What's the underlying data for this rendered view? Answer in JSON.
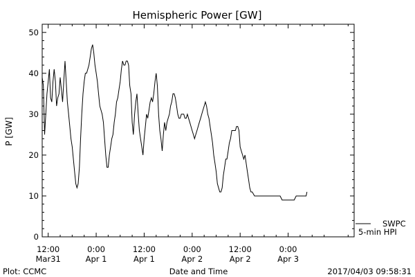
{
  "chart_data": {
    "type": "line",
    "title": "Hemispheric Power [GW]",
    "ylabel": "P [GW]",
    "xlabel": "Date and Time",
    "ylim": [
      0,
      52
    ],
    "yticks": [
      0,
      10,
      20,
      30,
      40,
      50
    ],
    "x_unit": "hours since Mar31 12:00",
    "xlim": [
      -1.5,
      76.5
    ],
    "xticks": [
      {
        "x": 0,
        "line1": "12:00",
        "line2": "Mar31"
      },
      {
        "x": 12,
        "line1": "0:00",
        "line2": "Apr 1"
      },
      {
        "x": 24,
        "line1": "12:00",
        "line2": "Apr 1"
      },
      {
        "x": 36,
        "line1": "0:00",
        "line2": "Apr 2"
      },
      {
        "x": 48,
        "line1": "12:00",
        "line2": "Apr 2"
      },
      {
        "x": 60,
        "line1": "0:00",
        "line2": "Apr 3"
      }
    ],
    "grid": false,
    "legend": {
      "placement": "right-bottom",
      "entries": [
        "SWPC",
        "5-min HPI"
      ]
    },
    "series": [
      {
        "name": "SWPC",
        "points": [
          [
            -1.5,
            39
          ],
          [
            -1.2,
            37
          ],
          [
            -0.9,
            25
          ],
          [
            -0.6,
            30
          ],
          [
            -0.3,
            35
          ],
          [
            0,
            38
          ],
          [
            0.3,
            41
          ],
          [
            0.6,
            34
          ],
          [
            0.9,
            33
          ],
          [
            1.2,
            38
          ],
          [
            1.5,
            41
          ],
          [
            1.8,
            38
          ],
          [
            2.1,
            32
          ],
          [
            2.4,
            34
          ],
          [
            2.7,
            35
          ],
          [
            3.0,
            39
          ],
          [
            3.3,
            36
          ],
          [
            3.6,
            33
          ],
          [
            3.9,
            38
          ],
          [
            4.2,
            43
          ],
          [
            4.5,
            38
          ],
          [
            4.8,
            33
          ],
          [
            5.1,
            30
          ],
          [
            5.4,
            27
          ],
          [
            5.7,
            24
          ],
          [
            6.0,
            22
          ],
          [
            6.3,
            19
          ],
          [
            6.6,
            16
          ],
          [
            6.9,
            13
          ],
          [
            7.2,
            12
          ],
          [
            7.5,
            13
          ],
          [
            7.8,
            17
          ],
          [
            8.1,
            24
          ],
          [
            8.4,
            30
          ],
          [
            8.7,
            35
          ],
          [
            9.0,
            38
          ],
          [
            9.3,
            40
          ],
          [
            9.6,
            40
          ],
          [
            9.9,
            41
          ],
          [
            10.2,
            42
          ],
          [
            10.5,
            44
          ],
          [
            10.8,
            46
          ],
          [
            11.1,
            47
          ],
          [
            11.4,
            45
          ],
          [
            11.7,
            42
          ],
          [
            12.0,
            40
          ],
          [
            12.3,
            38
          ],
          [
            12.6,
            35
          ],
          [
            12.9,
            32
          ],
          [
            13.2,
            31
          ],
          [
            13.5,
            30
          ],
          [
            13.8,
            28
          ],
          [
            14.1,
            24
          ],
          [
            14.4,
            20
          ],
          [
            14.7,
            17
          ],
          [
            15.0,
            17
          ],
          [
            15.3,
            20
          ],
          [
            15.6,
            22
          ],
          [
            15.9,
            24
          ],
          [
            16.2,
            25
          ],
          [
            16.5,
            28
          ],
          [
            16.8,
            30
          ],
          [
            17.1,
            33
          ],
          [
            17.4,
            34
          ],
          [
            17.7,
            36
          ],
          [
            18.0,
            38
          ],
          [
            18.3,
            41
          ],
          [
            18.6,
            43
          ],
          [
            18.9,
            42
          ],
          [
            19.2,
            42
          ],
          [
            19.5,
            43
          ],
          [
            19.8,
            43
          ],
          [
            20.1,
            42
          ],
          [
            20.4,
            37
          ],
          [
            20.7,
            35
          ],
          [
            21.0,
            28
          ],
          [
            21.3,
            25
          ],
          [
            21.6,
            30
          ],
          [
            21.9,
            33
          ],
          [
            22.2,
            35
          ],
          [
            22.5,
            30
          ],
          [
            22.8,
            26
          ],
          [
            23.1,
            24
          ],
          [
            23.4,
            22
          ],
          [
            23.7,
            20
          ],
          [
            24.0,
            24
          ],
          [
            24.3,
            27
          ],
          [
            24.6,
            30
          ],
          [
            24.9,
            29
          ],
          [
            25.2,
            31
          ],
          [
            25.5,
            33
          ],
          [
            25.8,
            34
          ],
          [
            26.1,
            33
          ],
          [
            26.4,
            35
          ],
          [
            26.7,
            38
          ],
          [
            27.0,
            40
          ],
          [
            27.3,
            37
          ],
          [
            27.6,
            30
          ],
          [
            27.9,
            26
          ],
          [
            28.2,
            24
          ],
          [
            28.5,
            21
          ],
          [
            28.8,
            25
          ],
          [
            29.1,
            28
          ],
          [
            29.4,
            26
          ],
          [
            29.7,
            28
          ],
          [
            30.0,
            29
          ],
          [
            30.3,
            30
          ],
          [
            30.6,
            32
          ],
          [
            30.9,
            33
          ],
          [
            31.2,
            35
          ],
          [
            31.5,
            35
          ],
          [
            31.8,
            34
          ],
          [
            32.1,
            32
          ],
          [
            32.4,
            30
          ],
          [
            32.7,
            29
          ],
          [
            33.0,
            29
          ],
          [
            33.3,
            30
          ],
          [
            33.6,
            30
          ],
          [
            33.9,
            30
          ],
          [
            34.2,
            29
          ],
          [
            34.5,
            29
          ],
          [
            34.8,
            30
          ],
          [
            35.1,
            29
          ],
          [
            35.4,
            28
          ],
          [
            35.7,
            27
          ],
          [
            36.0,
            26
          ],
          [
            36.3,
            25
          ],
          [
            36.6,
            24
          ],
          [
            36.9,
            25
          ],
          [
            37.2,
            26
          ],
          [
            37.5,
            27
          ],
          [
            37.8,
            28
          ],
          [
            38.1,
            29
          ],
          [
            38.4,
            30
          ],
          [
            38.7,
            31
          ],
          [
            39.0,
            32
          ],
          [
            39.3,
            33
          ],
          [
            39.6,
            32
          ],
          [
            39.9,
            30
          ],
          [
            40.2,
            29
          ],
          [
            40.5,
            27
          ],
          [
            40.8,
            25
          ],
          [
            41.1,
            23
          ],
          [
            41.4,
            20
          ],
          [
            41.7,
            18
          ],
          [
            42.0,
            16
          ],
          [
            42.3,
            13
          ],
          [
            42.6,
            12
          ],
          [
            42.9,
            11
          ],
          [
            43.2,
            11
          ],
          [
            43.5,
            12
          ],
          [
            43.8,
            15
          ],
          [
            44.1,
            17
          ],
          [
            44.4,
            19
          ],
          [
            44.7,
            19
          ],
          [
            45.0,
            21
          ],
          [
            45.3,
            23
          ],
          [
            45.6,
            24
          ],
          [
            45.9,
            26
          ],
          [
            46.2,
            26
          ],
          [
            46.5,
            26
          ],
          [
            46.8,
            26
          ],
          [
            47.1,
            27
          ],
          [
            47.4,
            27
          ],
          [
            47.7,
            26
          ],
          [
            48.0,
            22
          ],
          [
            48.3,
            21
          ],
          [
            48.6,
            20
          ],
          [
            48.9,
            19
          ],
          [
            49.2,
            20
          ],
          [
            49.5,
            18
          ],
          [
            49.8,
            16
          ],
          [
            50.1,
            14
          ],
          [
            50.4,
            12
          ],
          [
            50.7,
            11
          ],
          [
            51.0,
            11
          ],
          [
            51.6,
            10
          ],
          [
            53.0,
            10
          ],
          [
            55.0,
            10
          ],
          [
            57.0,
            10
          ],
          [
            58.0,
            10
          ],
          [
            58.5,
            9
          ],
          [
            60.0,
            9
          ],
          [
            61.5,
            9
          ],
          [
            62.0,
            10
          ],
          [
            63.0,
            10
          ],
          [
            64.0,
            10
          ],
          [
            64.5,
            10
          ],
          [
            64.7,
            11
          ]
        ]
      }
    ]
  },
  "footer": {
    "left": "Plot: CCMC",
    "center": "Date and Time",
    "right": "2017/04/03 09:58:31"
  },
  "colors": {
    "line": "#000000",
    "background": "#ffffff"
  }
}
